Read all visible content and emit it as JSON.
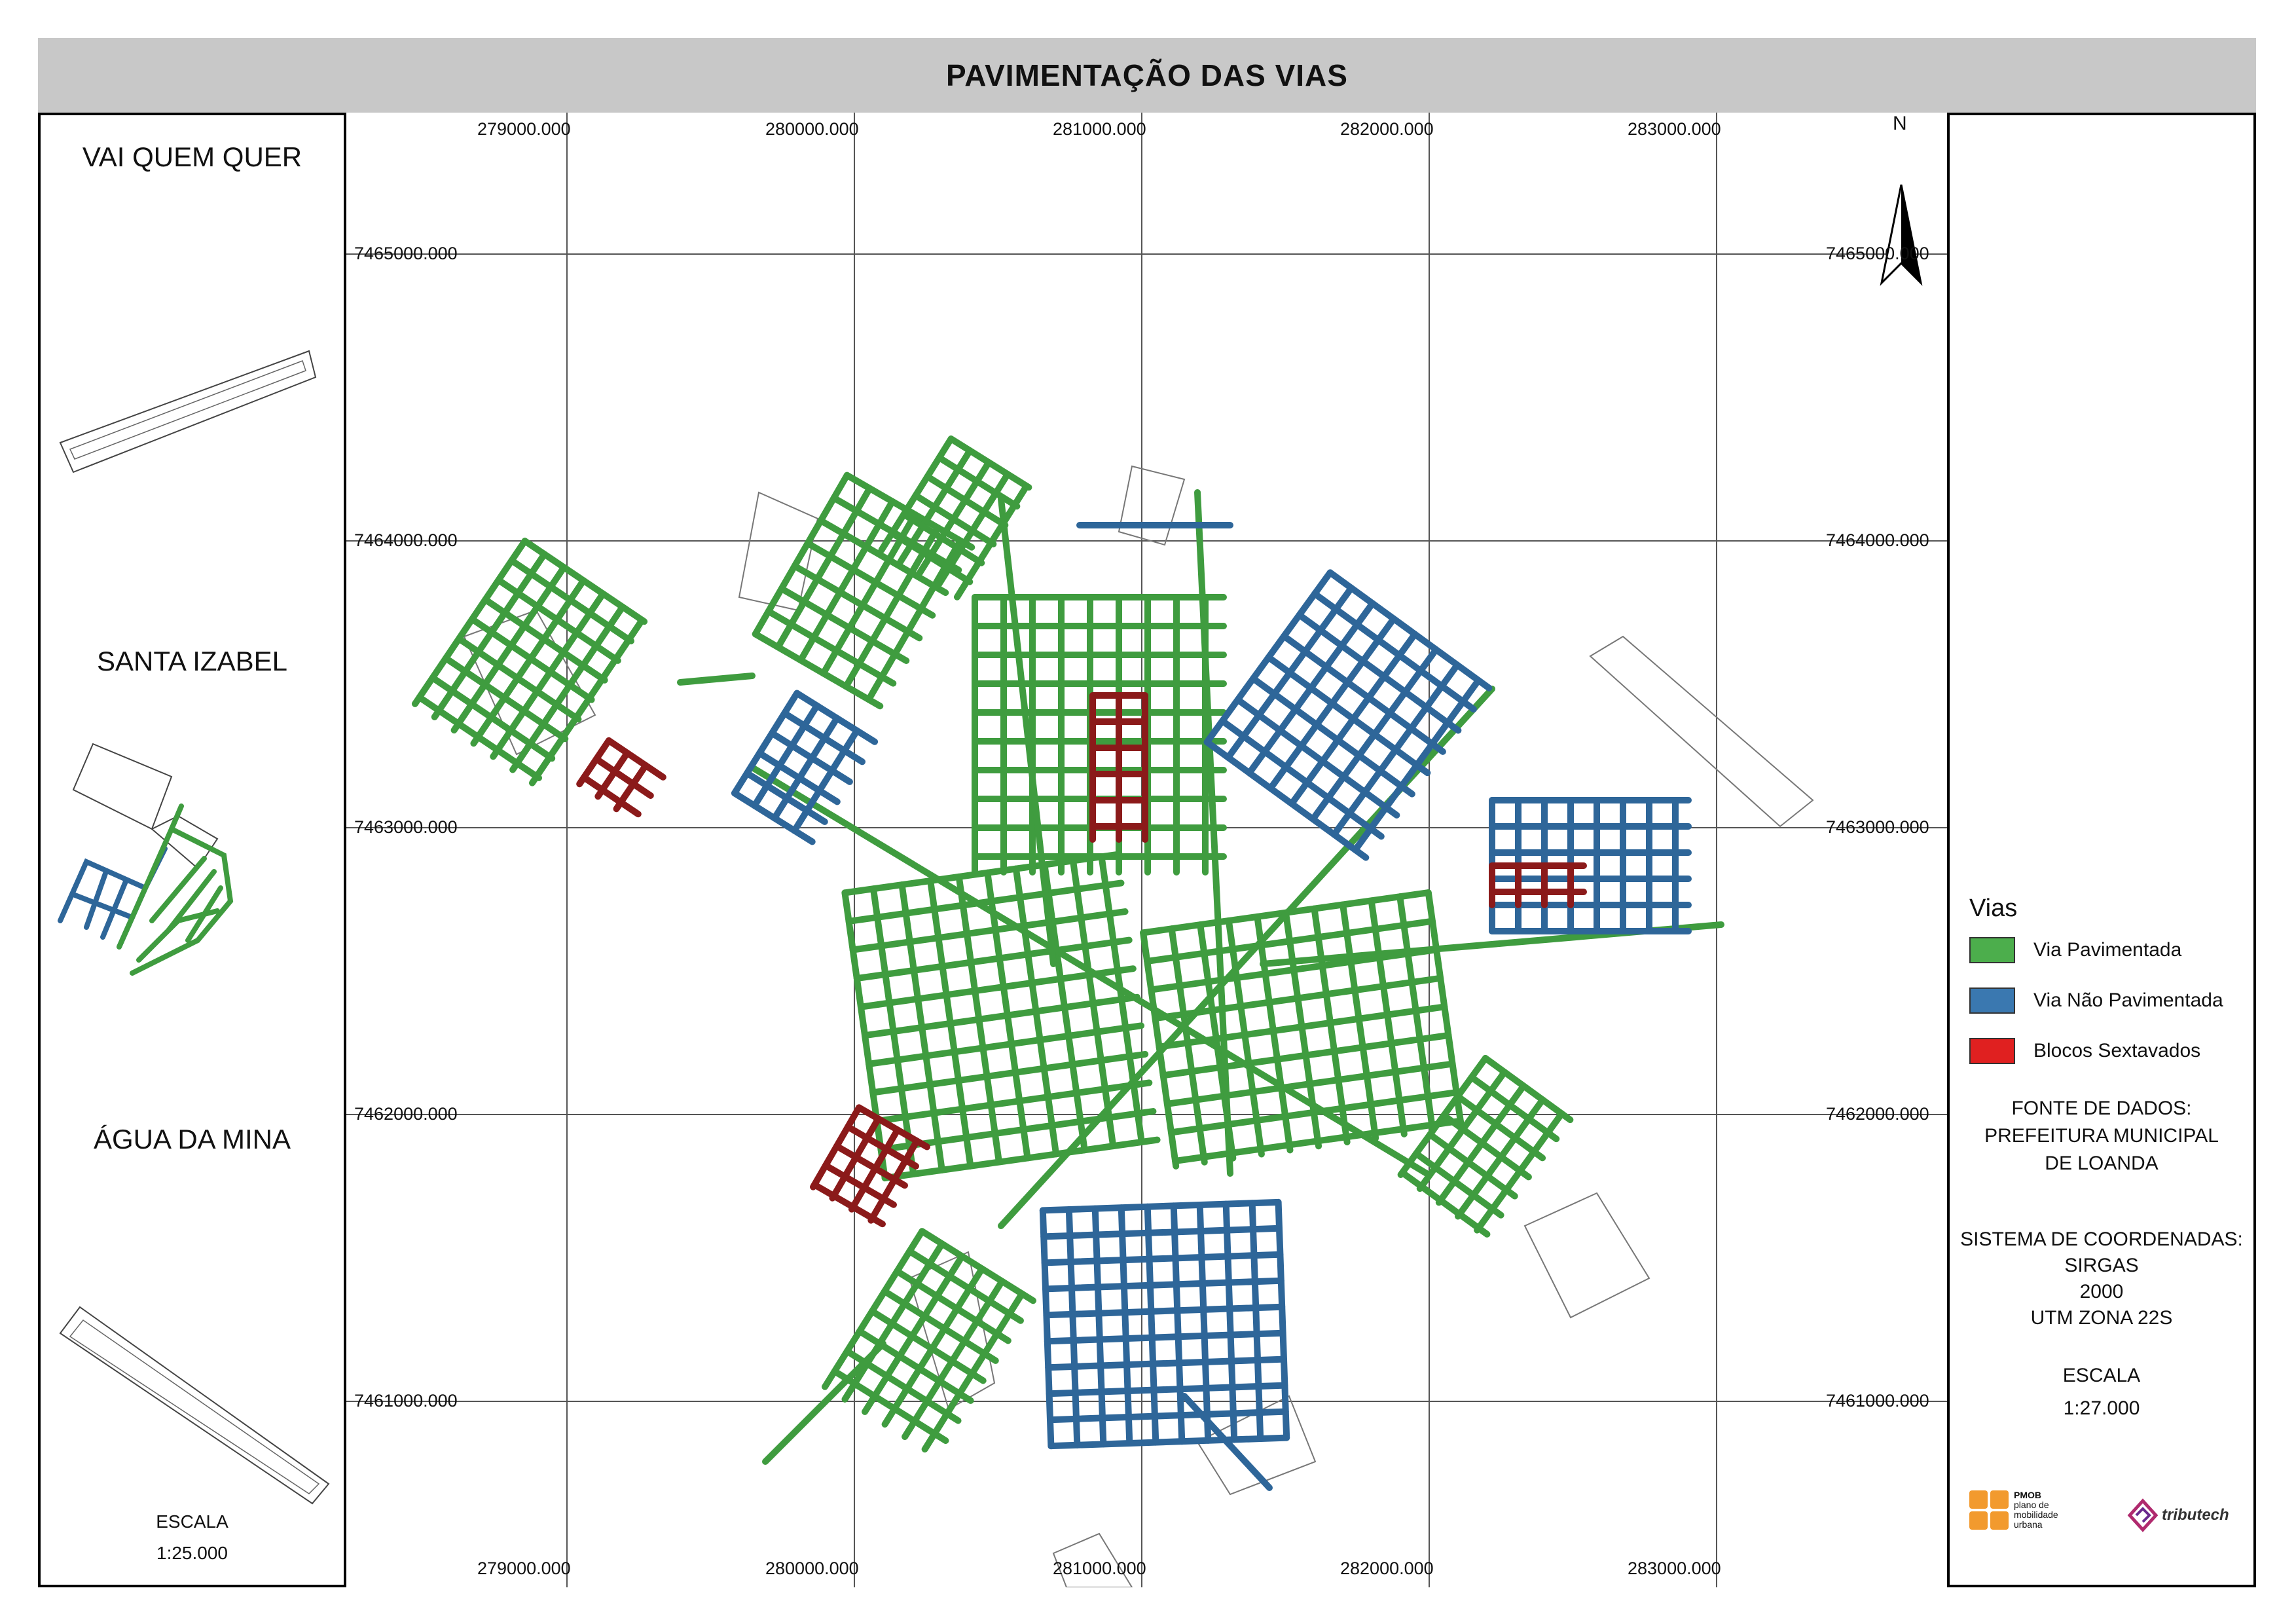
{
  "title": "PAVIMENTAÇÃO DAS VIAS",
  "insets": [
    {
      "label": "VAI QUEM QUER"
    },
    {
      "label": "SANTA IZABEL"
    },
    {
      "label": "ÁGUA DA MINA"
    }
  ],
  "left_scale": {
    "title": "ESCALA",
    "value": "1:25.000"
  },
  "north": "N",
  "grid": {
    "x_labels": [
      "279000.000",
      "280000.000",
      "281000.000",
      "282000.000",
      "283000.000"
    ],
    "y_labels": [
      "7465000.000",
      "7464000.000",
      "7463000.000",
      "7462000.000",
      "7461000.000"
    ]
  },
  "legend": {
    "title": "Vias",
    "items": [
      {
        "label": "Via Pavimentada",
        "color": "#4cae4c"
      },
      {
        "label": "Via Não Pavimentada",
        "color": "#3a78b0"
      },
      {
        "label": "Blocos Sextavados",
        "color": "#e02020"
      }
    ]
  },
  "source": {
    "line1": "FONTE DE DADOS:",
    "line2": "PREFEITURA MUNICIPAL",
    "line3": "DE LOANDA"
  },
  "crs": {
    "line1": "SISTEMA DE COORDENADAS:",
    "line2": "SIRGAS",
    "line3": "2000",
    "line4": "UTM ZONA 22S"
  },
  "scale": {
    "title": "ESCALA",
    "value": "1:27.000"
  },
  "logos": {
    "pmob": "PMOB",
    "pmob_sub": "plano de mobilidade urbana",
    "tributech": "tributech"
  },
  "colors": {
    "paved": "#3f9c3f",
    "unpaved": "#2e6699",
    "blocks": "#8b1a1a",
    "outline": "#555555"
  }
}
